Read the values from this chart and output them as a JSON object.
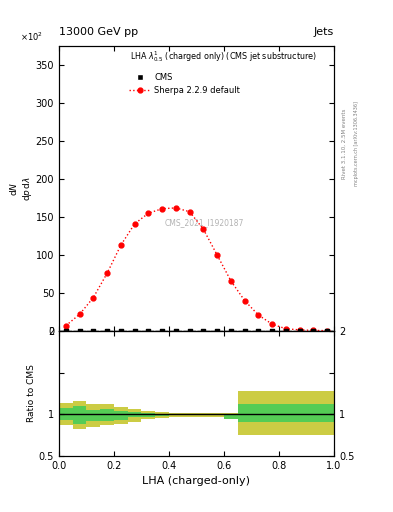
{
  "title_top": "13000 GeV pp",
  "title_right": "Jets",
  "plot_title": "LHA $\\lambda^{1}_{0.5}$ (charged only) (CMS jet substructure)",
  "watermark": "CMS_2021_I1920187",
  "rivet_label": "Rivet 3.1.10, 2.5M events",
  "mcplots_label": "mcplots.cern.ch [arXiv:1306.3436]",
  "xlabel": "LHA (charged-only)",
  "ylabel_main": "$\\frac{1}{\\mathrm{d}N}\\,/\\,\\mathrm{d}p\\,\\mathrm{d}\\lambda$",
  "ylabel_ratio": "Ratio to CMS",
  "ylim_main": [
    0,
    375
  ],
  "ylim_ratio": [
    0.5,
    2.0
  ],
  "yticks_main": [
    0,
    50,
    100,
    150,
    200,
    250,
    300,
    350
  ],
  "ytick_labels_main": [
    "0",
    "50",
    "100",
    "150",
    "200",
    "250",
    "300",
    "350"
  ],
  "xlim": [
    0,
    1
  ],
  "cms_x": [
    0.025,
    0.075,
    0.125,
    0.175,
    0.225,
    0.275,
    0.325,
    0.375,
    0.425,
    0.475,
    0.525,
    0.575,
    0.625,
    0.675,
    0.725,
    0.775,
    0.825,
    0.875,
    0.925,
    0.975
  ],
  "cms_y": [
    0.5,
    0.5,
    0.5,
    0.5,
    0.5,
    0.5,
    0.5,
    0.5,
    0.5,
    0.5,
    0.5,
    0.5,
    0.5,
    0.5,
    0.5,
    0.5,
    0.5,
    0.5,
    0.5,
    0.5
  ],
  "sherpa_x": [
    0.025,
    0.075,
    0.125,
    0.175,
    0.225,
    0.275,
    0.325,
    0.375,
    0.425,
    0.475,
    0.525,
    0.575,
    0.625,
    0.675,
    0.725,
    0.775,
    0.825,
    0.875,
    0.925,
    0.975
  ],
  "sherpa_y": [
    7,
    22,
    44,
    76,
    113,
    141,
    155,
    161,
    162,
    157,
    134,
    100,
    66,
    40,
    21,
    9,
    3,
    1.5,
    0.8,
    0.5
  ],
  "bin_edges": [
    0.0,
    0.05,
    0.1,
    0.15,
    0.2,
    0.25,
    0.3,
    0.35,
    0.4,
    0.45,
    0.5,
    0.55,
    0.6,
    0.65,
    0.7,
    0.75,
    0.8,
    0.85,
    0.9,
    0.95,
    1.0
  ],
  "ratio_green_hi": [
    1.07,
    1.1,
    1.05,
    1.06,
    1.04,
    1.02,
    1.01,
    1.0,
    1.0,
    1.0,
    1.0,
    1.0,
    1.0,
    1.12,
    1.12,
    1.12,
    1.12,
    1.12,
    1.12,
    1.12
  ],
  "ratio_green_lo": [
    0.93,
    0.88,
    0.92,
    0.92,
    0.93,
    0.96,
    0.97,
    0.98,
    0.99,
    0.99,
    0.99,
    0.99,
    0.94,
    0.9,
    0.9,
    0.9,
    0.91,
    0.91,
    0.91,
    0.91
  ],
  "ratio_yellow_hi": [
    1.13,
    1.16,
    1.12,
    1.12,
    1.09,
    1.06,
    1.04,
    1.02,
    1.01,
    1.01,
    1.01,
    1.01,
    1.01,
    1.28,
    1.28,
    1.28,
    1.28,
    1.28,
    1.28,
    1.28
  ],
  "ratio_yellow_lo": [
    0.87,
    0.82,
    0.85,
    0.87,
    0.88,
    0.91,
    0.94,
    0.95,
    0.97,
    0.97,
    0.97,
    0.97,
    0.97,
    0.75,
    0.75,
    0.75,
    0.75,
    0.75,
    0.75,
    0.75
  ],
  "cms_color": "black",
  "sherpa_color": "red",
  "green_color": "#55cc55",
  "yellow_color": "#cccc44",
  "bg_color": "white"
}
